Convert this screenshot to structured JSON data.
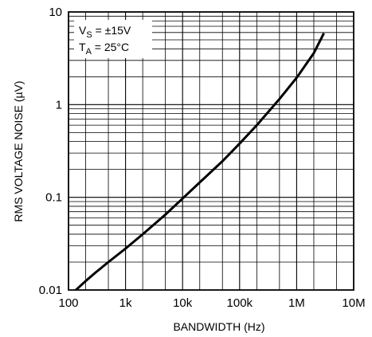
{
  "chart_data": {
    "type": "line",
    "x_scale": "log",
    "y_scale": "log",
    "xlim": [
      100,
      10000000
    ],
    "ylim": [
      0.01,
      10
    ],
    "grid": true,
    "xlabel": "BANDWIDTH (Hz)",
    "ylabel": "RMS VOLTAGE NOISE (µV)",
    "x_ticks": [
      {
        "value": 100,
        "label": "100"
      },
      {
        "value": 1000,
        "label": "1k"
      },
      {
        "value": 10000,
        "label": "10k"
      },
      {
        "value": 100000,
        "label": "100k"
      },
      {
        "value": 1000000,
        "label": "1M"
      },
      {
        "value": 10000000,
        "label": "10M"
      }
    ],
    "y_ticks": [
      {
        "value": 0.01,
        "label": "0.01"
      },
      {
        "value": 0.1,
        "label": "0.1"
      },
      {
        "value": 1,
        "label": "1"
      },
      {
        "value": 10,
        "label": "10"
      }
    ],
    "annotation": {
      "vs_main": "V",
      "vs_sub": "S",
      "vs_rest": " = ±15V",
      "ta_main": "T",
      "ta_sub": "A",
      "ta_rest": " = 25°C"
    },
    "series": [
      {
        "x": [
          130,
          200,
          300,
          500,
          1000,
          2000,
          5000,
          10000,
          20000,
          50000,
          100000,
          200000,
          500000,
          1000000,
          2000000,
          3000000
        ],
        "y": [
          0.0098,
          0.0125,
          0.0155,
          0.02,
          0.028,
          0.04,
          0.065,
          0.097,
          0.145,
          0.245,
          0.38,
          0.6,
          1.15,
          1.95,
          3.6,
          5.9
        ]
      }
    ],
    "line_color": "#000000"
  }
}
